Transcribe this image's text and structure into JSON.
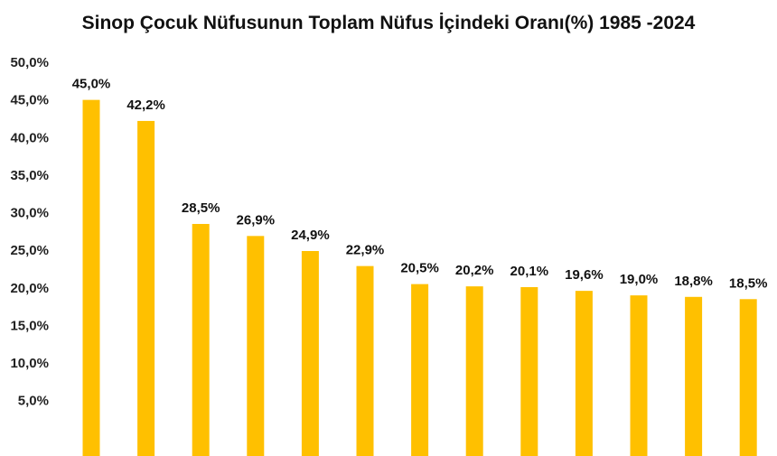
{
  "chart_data": {
    "type": "bar",
    "title": "Sinop Çocuk Nüfusunun Toplam Nüfus İçindeki Oranı(%) 1985 -2024",
    "xlabel": "",
    "ylabel": "",
    "values": [
      45.0,
      42.2,
      28.5,
      26.9,
      24.9,
      22.9,
      20.5,
      20.2,
      20.1,
      19.6,
      19.0,
      18.8,
      18.5
    ],
    "data_labels": [
      "45,0%",
      "42,2%",
      "28,5%",
      "26,9%",
      "24,9%",
      "22,9%",
      "20,5%",
      "20,2%",
      "20,1%",
      "19,6%",
      "19,0%",
      "18,8%",
      "18,5%"
    ],
    "ylim": [
      1.0,
      50.0
    ],
    "yticks": [
      5,
      10,
      15,
      20,
      25,
      30,
      35,
      40,
      45,
      50
    ],
    "ytick_labels": [
      "5,0%",
      "10,0%",
      "15,0%",
      "20,0%",
      "25,0%",
      "30,0%",
      "35,0%",
      "40,0%",
      "45,0%",
      "50,0%"
    ],
    "grid": false,
    "legend": "none",
    "bar_color": "#FFC000"
  }
}
